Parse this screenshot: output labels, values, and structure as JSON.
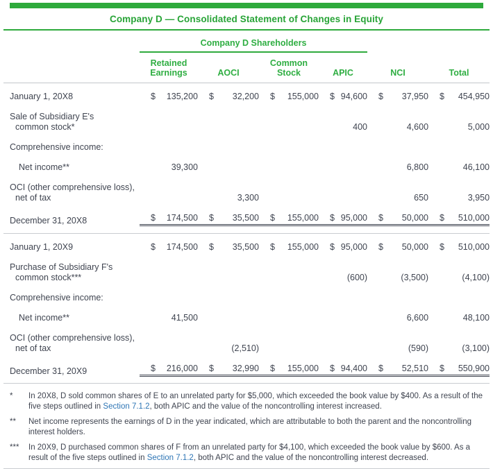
{
  "title": "Company D — Consolidated Statement of Changes in Equity",
  "table": {
    "group_header": "Company D Shareholders",
    "columns": [
      "Retained Earnings",
      "AOCI",
      "Common Stock",
      "APIC",
      "NCI",
      "Total"
    ],
    "rows": [
      {
        "label": [
          "January 1, 20X8"
        ],
        "dollar": true,
        "style": "opening",
        "values": [
          "135,200",
          "32,200",
          "155,000",
          "94,600",
          "37,950",
          "454,950"
        ]
      },
      {
        "label": [
          "Sale of Subsidiary E's",
          "common stock*"
        ],
        "style": "normal",
        "values": [
          "",
          "",
          "",
          "400",
          "4,600",
          "5,000"
        ]
      },
      {
        "label": [
          "Comprehensive income:"
        ],
        "style": "section",
        "values": [
          "",
          "",
          "",
          "",
          "",
          ""
        ]
      },
      {
        "label": [
          "Net income**"
        ],
        "indent": 1,
        "style": "normal",
        "values": [
          "39,300",
          "",
          "",
          "",
          "6,800",
          "46,100"
        ]
      },
      {
        "label": [
          "OCI (other comprehensive loss),",
          "net of tax"
        ],
        "style": "normal",
        "values": [
          "",
          "3,300",
          "",
          "",
          "650",
          "3,950"
        ]
      },
      {
        "label": [
          "December 31, 20X8"
        ],
        "dollar": true,
        "style": "total",
        "divider_after": true,
        "values": [
          "174,500",
          "35,500",
          "155,000",
          "95,000",
          "50,000",
          "510,000"
        ]
      },
      {
        "label": [
          "January 1, 20X9"
        ],
        "dollar": true,
        "style": "opening",
        "values": [
          "174,500",
          "35,500",
          "155,000",
          "95,000",
          "50,000",
          "510,000"
        ]
      },
      {
        "label": [
          "Purchase of Subsidiary F's",
          "common stock***"
        ],
        "style": "normal",
        "values": [
          "",
          "",
          "",
          "(600)",
          "(3,500)",
          "(4,100)"
        ]
      },
      {
        "label": [
          "Comprehensive income:"
        ],
        "style": "section",
        "values": [
          "",
          "",
          "",
          "",
          "",
          ""
        ]
      },
      {
        "label": [
          "Net income**"
        ],
        "indent": 1,
        "style": "normal",
        "values": [
          "41,500",
          "",
          "",
          "",
          "6,600",
          "48,100"
        ]
      },
      {
        "label": [
          "OCI (other comprehensive loss),",
          "net of tax"
        ],
        "style": "normal",
        "values": [
          "",
          "(2,510)",
          "",
          "",
          "(590)",
          "(3,100)"
        ]
      },
      {
        "label": [
          "December 31, 20X9"
        ],
        "dollar": true,
        "style": "total",
        "divider_after": true,
        "values": [
          "216,000",
          "32,990",
          "155,000",
          "94,400",
          "52,510",
          "550,900"
        ]
      }
    ],
    "currency_symbol": "$"
  },
  "footnotes": [
    {
      "marker": "*",
      "parts": [
        {
          "text": "In 20X8, D sold common shares of E to an unrelated party for $5,000, which exceeded the book value by $400. As a result of the five steps outlined in "
        },
        {
          "link": "Section 7.1.2"
        },
        {
          "text": ", both APIC and the value of the noncontrolling interest increased."
        }
      ]
    },
    {
      "marker": "**",
      "parts": [
        {
          "text": "Net income represents the earnings of D in the year indicated, which are attributable to both the parent and the noncontrolling interest holders."
        }
      ]
    },
    {
      "marker": "***",
      "parts": [
        {
          "text": "In 20X9, D purchased common shares of F from an unrelated party for $4,100, which exceeded the book value by $600. As a result of the five steps outlined in "
        },
        {
          "link": "Section 7.1.2"
        },
        {
          "text": ", both APIC and the value of the noncontrolling interest decreased."
        }
      ]
    }
  ],
  "colors": {
    "accent_green": "#2eaa3c",
    "link_blue": "#2e75b5",
    "text_gray": "#3f4450",
    "rule_gray": "#c9ccd0"
  }
}
